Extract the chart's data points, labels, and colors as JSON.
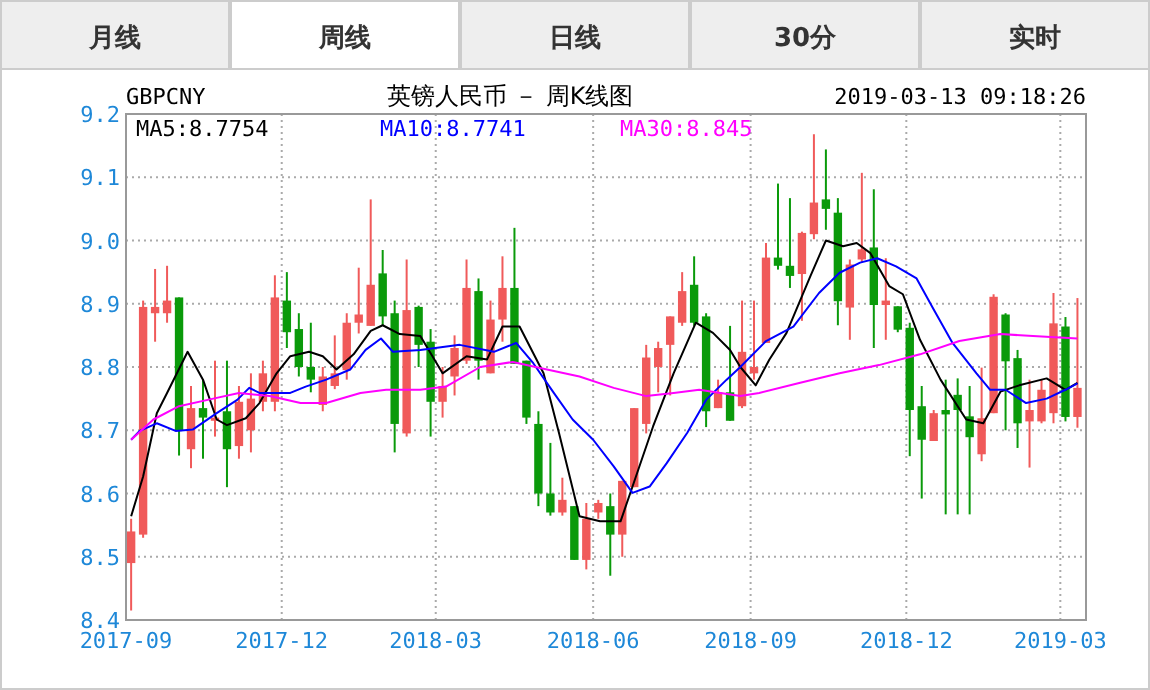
{
  "chart_data": {
    "type": "candlestick",
    "title": "英镑人民币 － 周K线图",
    "annotations": [
      "月线",
      "周线",
      "日线",
      "30分",
      "实时",
      "GBPCNY",
      "2019-03-13 09:18:26"
    ],
    "x": [
      "2017-09-04",
      "2017-09-11",
      "2017-09-18",
      "2017-09-25",
      "2017-10-02",
      "2017-10-09",
      "2017-10-16",
      "2017-10-23",
      "2017-10-30",
      "2017-11-06",
      "2017-11-13",
      "2017-11-20",
      "2017-11-27",
      "2017-12-04",
      "2017-12-11",
      "2017-12-18",
      "2017-12-25",
      "2018-01-01",
      "2018-01-08",
      "2018-01-15",
      "2018-01-22",
      "2018-01-29",
      "2018-02-05",
      "2018-02-12",
      "2018-02-19",
      "2018-02-26",
      "2018-03-05",
      "2018-03-12",
      "2018-03-19",
      "2018-03-26",
      "2018-04-02",
      "2018-04-09",
      "2018-04-16",
      "2018-04-23",
      "2018-04-30",
      "2018-05-07",
      "2018-05-14",
      "2018-05-21",
      "2018-05-28",
      "2018-06-04",
      "2018-06-11",
      "2018-06-18",
      "2018-06-25",
      "2018-07-02",
      "2018-07-09",
      "2018-07-16",
      "2018-07-23",
      "2018-07-30",
      "2018-08-06",
      "2018-08-13",
      "2018-08-20",
      "2018-08-27",
      "2018-09-03",
      "2018-09-10",
      "2018-09-17",
      "2018-09-24",
      "2018-10-01",
      "2018-10-08",
      "2018-10-15",
      "2018-10-22",
      "2018-10-29",
      "2018-11-05",
      "2018-11-12",
      "2018-11-19",
      "2018-11-26",
      "2018-12-03",
      "2018-12-10",
      "2018-12-17",
      "2018-12-24",
      "2018-12-31",
      "2019-01-07",
      "2019-01-14",
      "2019-01-21",
      "2019-01-28",
      "2019-02-04",
      "2019-02-11",
      "2019-02-18",
      "2019-02-25",
      "2019-03-04",
      "2019-03-11"
    ],
    "ohlc": [
      [
        8.49,
        8.56,
        8.415,
        8.54
      ],
      [
        8.535,
        8.905,
        8.53,
        8.895
      ],
      [
        8.885,
        8.955,
        8.84,
        8.895
      ],
      [
        8.885,
        8.96,
        8.87,
        8.905
      ],
      [
        8.91,
        8.91,
        8.66,
        8.7
      ],
      [
        8.67,
        8.77,
        8.64,
        8.735
      ],
      [
        8.735,
        8.78,
        8.655,
        8.72
      ],
      [
        8.715,
        8.81,
        8.69,
        8.72
      ],
      [
        8.73,
        8.81,
        8.61,
        8.67
      ],
      [
        8.675,
        8.77,
        8.655,
        8.745
      ],
      [
        8.7,
        8.79,
        8.665,
        8.75
      ],
      [
        8.745,
        8.81,
        8.73,
        8.79
      ],
      [
        8.745,
        8.945,
        8.73,
        8.91
      ],
      [
        8.905,
        8.95,
        8.83,
        8.855
      ],
      [
        8.86,
        8.885,
        8.785,
        8.8
      ],
      [
        8.8,
        8.87,
        8.76,
        8.78
      ],
      [
        8.74,
        8.8,
        8.73,
        8.785
      ],
      [
        8.77,
        8.85,
        8.765,
        8.79
      ],
      [
        8.795,
        8.885,
        8.78,
        8.87
      ],
      [
        8.87,
        8.957,
        8.853,
        8.883
      ],
      [
        8.865,
        9.065,
        8.865,
        8.93
      ],
      [
        8.948,
        8.985,
        8.865,
        8.88
      ],
      [
        8.885,
        8.905,
        8.665,
        8.71
      ],
      [
        8.695,
        8.97,
        8.69,
        8.89
      ],
      [
        8.895,
        8.897,
        8.8,
        8.835
      ],
      [
        8.84,
        8.86,
        8.69,
        8.745
      ],
      [
        8.745,
        8.8,
        8.72,
        8.77
      ],
      [
        8.785,
        8.85,
        8.755,
        8.83
      ],
      [
        8.81,
        8.97,
        8.805,
        8.925
      ],
      [
        8.92,
        8.94,
        8.78,
        8.81
      ],
      [
        8.79,
        8.905,
        8.79,
        8.875
      ],
      [
        8.875,
        8.975,
        8.84,
        8.925
      ],
      [
        8.925,
        9.02,
        8.805,
        8.805
      ],
      [
        8.81,
        8.81,
        8.71,
        8.72
      ],
      [
        8.71,
        8.73,
        8.58,
        8.6
      ],
      [
        8.6,
        8.68,
        8.565,
        8.57
      ],
      [
        8.57,
        8.625,
        8.565,
        8.59
      ],
      [
        8.58,
        8.58,
        8.495,
        8.495
      ],
      [
        8.495,
        8.585,
        8.48,
        8.56
      ],
      [
        8.57,
        8.59,
        8.56,
        8.585
      ],
      [
        8.58,
        8.6,
        8.47,
        8.535
      ],
      [
        8.535,
        8.62,
        8.5,
        8.62
      ],
      [
        8.61,
        8.735,
        8.61,
        8.735
      ],
      [
        8.71,
        8.835,
        8.695,
        8.815
      ],
      [
        8.8,
        8.84,
        8.76,
        8.83
      ],
      [
        8.835,
        8.88,
        8.755,
        8.88
      ],
      [
        8.87,
        8.95,
        8.865,
        8.92
      ],
      [
        8.93,
        8.975,
        8.865,
        8.87
      ],
      [
        8.88,
        8.885,
        8.705,
        8.73
      ],
      [
        8.735,
        8.78,
        8.735,
        8.76
      ],
      [
        8.76,
        8.865,
        8.715,
        8.715
      ],
      [
        8.738,
        8.905,
        8.735,
        8.824
      ],
      [
        8.79,
        8.905,
        8.78,
        8.8
      ],
      [
        8.838,
        8.996,
        8.838,
        8.973
      ],
      [
        8.973,
        9.09,
        8.954,
        8.96
      ],
      [
        8.96,
        9.067,
        8.925,
        8.944
      ],
      [
        8.947,
        9.014,
        8.873,
        9.012
      ],
      [
        9.01,
        9.168,
        9.002,
        9.06
      ],
      [
        9.065,
        9.144,
        9.017,
        9.05
      ],
      [
        9.044,
        9.067,
        8.866,
        8.904
      ],
      [
        8.894,
        8.97,
        8.843,
        8.962
      ],
      [
        8.97,
        9.107,
        8.965,
        8.986
      ],
      [
        8.989,
        9.081,
        8.83,
        8.898
      ],
      [
        8.898,
        8.972,
        8.843,
        8.905
      ],
      [
        8.896,
        8.896,
        8.855,
        8.859
      ],
      [
        8.862,
        8.87,
        8.659,
        8.732
      ],
      [
        8.738,
        8.77,
        8.592,
        8.685
      ],
      [
        8.683,
        8.732,
        8.683,
        8.727
      ],
      [
        8.732,
        8.78,
        8.567,
        8.725
      ],
      [
        8.756,
        8.782,
        8.567,
        8.732
      ],
      [
        8.722,
        8.77,
        8.567,
        8.689
      ],
      [
        8.662,
        8.799,
        8.651,
        8.719
      ],
      [
        8.727,
        8.915,
        8.727,
        8.911
      ],
      [
        8.883,
        8.885,
        8.7,
        8.809
      ],
      [
        8.814,
        8.827,
        8.672,
        8.711
      ],
      [
        8.714,
        8.78,
        8.641,
        8.732
      ],
      [
        8.714,
        8.78,
        8.711,
        8.764
      ],
      [
        8.727,
        8.917,
        8.711,
        8.869
      ],
      [
        8.864,
        8.879,
        8.714,
        8.721
      ],
      [
        8.721,
        8.909,
        8.704,
        8.767
      ]
    ],
    "colors": [
      "#f05a5a",
      "#f05a5a",
      "#f05a5a",
      "#f05a5a",
      "#0a9a0a",
      "#f05a5a",
      "#0a9a0a",
      "#f05a5a",
      "#0a9a0a",
      "#f05a5a",
      "#f05a5a",
      "#f05a5a",
      "#f05a5a",
      "#0a9a0a",
      "#0a9a0a",
      "#0a9a0a",
      "#f05a5a",
      "#f05a5a",
      "#f05a5a",
      "#f05a5a",
      "#f05a5a",
      "#0a9a0a",
      "#0a9a0a",
      "#f05a5a",
      "#0a9a0a",
      "#0a9a0a",
      "#f05a5a",
      "#f05a5a",
      "#f05a5a",
      "#0a9a0a",
      "#f05a5a",
      "#f05a5a",
      "#0a9a0a",
      "#0a9a0a",
      "#0a9a0a",
      "#0a9a0a",
      "#f05a5a",
      "#0a9a0a",
      "#f05a5a",
      "#f05a5a",
      "#0a9a0a",
      "#f05a5a",
      "#f05a5a",
      "#f05a5a",
      "#f05a5a",
      "#f05a5a",
      "#f05a5a",
      "#0a9a0a",
      "#0a9a0a",
      "#f05a5a",
      "#0a9a0a",
      "#f05a5a",
      "#f05a5a",
      "#f05a5a",
      "#0a9a0a",
      "#0a9a0a",
      "#f05a5a",
      "#f05a5a",
      "#0a9a0a",
      "#0a9a0a",
      "#f05a5a",
      "#f05a5a",
      "#0a9a0a",
      "#f05a5a",
      "#0a9a0a",
      "#0a9a0a",
      "#0a9a0a",
      "#f05a5a",
      "#0a9a0a",
      "#0a9a0a",
      "#0a9a0a",
      "#f05a5a",
      "#f05a5a",
      "#0a9a0a",
      "#0a9a0a",
      "#f05a5a",
      "#f05a5a",
      "#f05a5a",
      "#0a9a0a",
      "#f05a5a"
    ],
    "series": [
      {
        "name": "MA5:8.7754",
        "type": "line",
        "color": "#000000",
        "x": [
          "2017-09-04",
          "2017-09-11",
          "2017-09-19",
          "2017-09-25",
          "2017-10-07",
          "2017-10-16",
          "2017-10-24",
          "2017-10-30",
          "2017-11-10",
          "2017-11-18",
          "2017-11-28",
          "2017-12-06",
          "2017-12-17",
          "2017-12-25",
          "2018-01-02",
          "2018-01-12",
          "2018-01-22",
          "2018-01-29",
          "2018-02-08",
          "2018-02-20",
          "2018-03-05",
          "2018-03-19",
          "2018-03-31",
          "2018-04-09",
          "2018-04-19",
          "2018-05-03",
          "2018-05-12",
          "2018-05-24",
          "2018-06-05",
          "2018-06-17",
          "2018-06-24",
          "2018-07-06",
          "2018-07-18",
          "2018-07-31",
          "2018-08-10",
          "2018-08-20",
          "2018-08-26",
          "2018-09-04",
          "2018-09-12",
          "2018-09-22",
          "2018-10-06",
          "2018-10-15",
          "2018-10-25",
          "2018-11-02",
          "2018-11-10",
          "2018-11-21",
          "2018-11-29",
          "2018-12-09",
          "2018-12-21",
          "2019-01-05",
          "2019-01-15",
          "2019-01-25",
          "2019-02-05",
          "2019-02-21",
          "2019-03-04",
          "2019-03-11"
        ],
        "values": [
          8.564,
          8.627,
          8.727,
          8.759,
          8.824,
          8.78,
          8.717,
          8.708,
          8.719,
          8.743,
          8.79,
          8.817,
          8.824,
          8.817,
          8.796,
          8.82,
          8.857,
          8.866,
          8.852,
          8.849,
          8.79,
          8.817,
          8.812,
          8.864,
          8.864,
          8.79,
          8.696,
          8.564,
          8.556,
          8.556,
          8.611,
          8.706,
          8.79,
          8.87,
          8.854,
          8.827,
          8.8,
          8.771,
          8.812,
          8.854,
          8.944,
          9.0,
          8.991,
          8.996,
          8.98,
          8.928,
          8.915,
          8.843,
          8.78,
          8.717,
          8.711,
          8.761,
          8.771,
          8.782,
          8.764,
          8.775
        ]
      },
      {
        "name": "MA10:8.7741",
        "type": "line",
        "color": "#0000ff",
        "x": [
          "2017-09-04",
          "2017-09-09",
          "2017-09-19",
          "2017-09-30",
          "2017-10-10",
          "2017-10-24",
          "2017-11-05",
          "2017-11-12",
          "2017-11-18",
          "2017-11-28",
          "2017-12-06",
          "2017-12-15",
          "2017-12-27",
          "2018-01-10",
          "2018-01-19",
          "2018-01-28",
          "2018-02-04",
          "2018-02-20",
          "2018-03-15",
          "2018-04-04",
          "2018-04-17",
          "2018-04-27",
          "2018-05-09",
          "2018-05-20",
          "2018-06-01",
          "2018-06-13",
          "2018-06-24",
          "2018-07-04",
          "2018-07-14",
          "2018-07-26",
          "2018-08-06",
          "2018-08-18",
          "2018-08-26",
          "2018-09-10",
          "2018-09-26",
          "2018-10-11",
          "2018-10-23",
          "2018-11-04",
          "2018-11-14",
          "2018-11-25",
          "2018-12-07",
          "2018-12-17",
          "2018-12-28",
          "2019-01-11",
          "2019-01-19",
          "2019-01-28",
          "2019-02-09",
          "2019-02-21",
          "2019-03-04",
          "2019-03-11"
        ],
        "values": [
          8.685,
          8.699,
          8.711,
          8.699,
          8.701,
          8.727,
          8.748,
          8.767,
          8.759,
          8.759,
          8.759,
          8.769,
          8.78,
          8.796,
          8.827,
          8.845,
          8.824,
          8.827,
          8.835,
          8.824,
          8.838,
          8.806,
          8.759,
          8.717,
          8.685,
          8.643,
          8.601,
          8.611,
          8.648,
          8.696,
          8.748,
          8.78,
          8.8,
          8.841,
          8.864,
          8.917,
          8.949,
          8.965,
          8.972,
          8.959,
          8.94,
          8.891,
          8.838,
          8.79,
          8.764,
          8.764,
          8.743,
          8.75,
          8.764,
          8.774
        ]
      },
      {
        "name": "MA30:8.845",
        "type": "line",
        "color": "#ff00ff",
        "x": [
          "2017-09-04",
          "2017-09-17",
          "2017-10-02",
          "2017-10-22",
          "2017-11-06",
          "2017-11-24",
          "2017-12-12",
          "2017-12-27",
          "2018-01-16",
          "2018-01-31",
          "2018-02-20",
          "2018-03-07",
          "2018-03-27",
          "2018-04-15",
          "2018-05-05",
          "2018-05-24",
          "2018-06-13",
          "2018-07-02",
          "2018-07-18",
          "2018-08-02",
          "2018-08-26",
          "2018-09-06",
          "2018-09-30",
          "2018-10-23",
          "2018-11-15",
          "2018-12-09",
          "2019-01-01",
          "2019-01-25",
          "2019-02-13",
          "2019-03-11"
        ],
        "values": [
          8.685,
          8.717,
          8.738,
          8.75,
          8.759,
          8.754,
          8.743,
          8.743,
          8.759,
          8.764,
          8.764,
          8.769,
          8.8,
          8.808,
          8.796,
          8.785,
          8.767,
          8.754,
          8.759,
          8.764,
          8.754,
          8.759,
          8.775,
          8.79,
          8.803,
          8.82,
          8.841,
          8.852,
          8.849,
          8.845
        ]
      }
    ],
    "xlim": [
      "2017-09-01",
      "2019-03-16"
    ],
    "xticks": [
      {
        "value": "2017-09-01",
        "label": "2017-09"
      },
      {
        "value": "2017-12-01",
        "label": "2017-12"
      },
      {
        "value": "2018-03-01",
        "label": "2018-03"
      },
      {
        "value": "2018-06-01",
        "label": "2018-06"
      },
      {
        "value": "2018-09-01",
        "label": "2018-09"
      },
      {
        "value": "2018-12-01",
        "label": "2018-12"
      },
      {
        "value": "2019-03-01",
        "label": "2019-03"
      }
    ],
    "ylim": [
      8.4,
      9.2
    ],
    "yticks": [
      8.4,
      8.5,
      8.6,
      8.7,
      8.8,
      8.9,
      {
        "value": 9,
        "label": "9.0"
      },
      9.1,
      9.2
    ],
    "grid": true,
    "legend": "top"
  }
}
